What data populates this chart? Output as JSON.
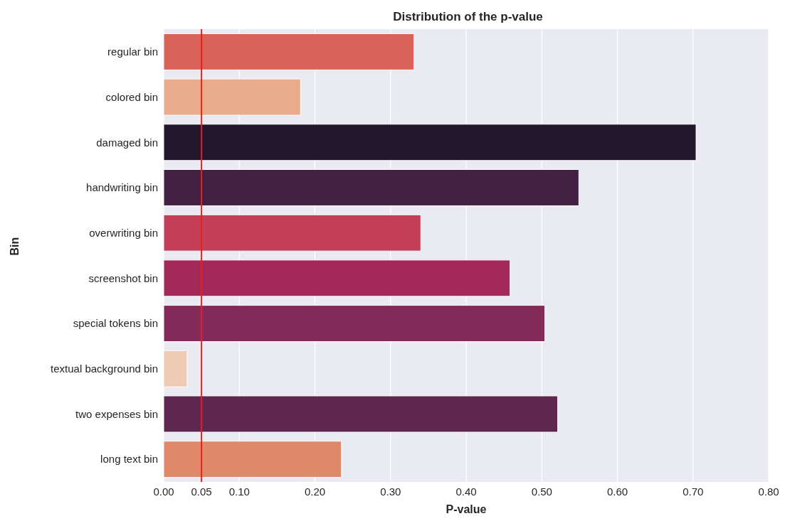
{
  "chart_data": {
    "type": "bar",
    "orientation": "horizontal",
    "title": "Distribution of the p-value",
    "xlabel": "P-value",
    "ylabel": "Bin",
    "categories": [
      "regular bin",
      "colored bin",
      "damaged bin",
      "handwriting bin",
      "overwriting bin",
      "screenshot bin",
      "special tokens bin",
      "textual background bin",
      "two expenses bin",
      "long text bin"
    ],
    "values": [
      0.331,
      0.181,
      0.704,
      0.549,
      0.34,
      0.458,
      0.504,
      0.031,
      0.521,
      0.235
    ],
    "colors": [
      "#d9625a",
      "#e8ab8c",
      "#23172e",
      "#422042",
      "#c43e57",
      "#a3295b",
      "#842b5a",
      "#efcbb5",
      "#5f264f",
      "#e0886a"
    ],
    "xlim": [
      0,
      0.8
    ],
    "xticks": [
      {
        "value": 0,
        "label": "0.00"
      },
      {
        "value": 0.05,
        "label": "0.05"
      },
      {
        "value": 0.1,
        "label": "0.10"
      },
      {
        "value": 0.2,
        "label": "0.20"
      },
      {
        "value": 0.3,
        "label": "0.30"
      },
      {
        "value": 0.4,
        "label": "0.40"
      },
      {
        "value": 0.5,
        "label": "0.50"
      },
      {
        "value": 0.6,
        "label": "0.60"
      },
      {
        "value": 0.7,
        "label": "0.70"
      },
      {
        "value": 0.8,
        "label": "0.80"
      }
    ],
    "ref_lines": [
      {
        "axis": "x",
        "value": 0.05,
        "color": "#ee1c1c"
      }
    ],
    "grid": "x"
  }
}
